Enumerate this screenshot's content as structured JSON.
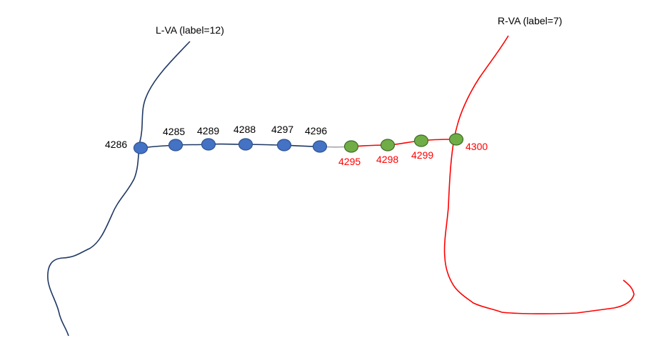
{
  "titles": {
    "left_vessel": "L-VA (label=12)",
    "right_vessel": "R-VA (label=7)"
  },
  "colors": {
    "left_line": "#1f3864",
    "right_line": "#ff0000",
    "connector": "#a6a6a6",
    "blue_node_fill": "#4472c4",
    "blue_node_stroke": "#2f528f",
    "green_node_fill": "#70ad47",
    "green_node_stroke": "#3a6b22",
    "blue_label": "#000000",
    "green_label": "#ff0000"
  },
  "nodes": [
    {
      "id": "4286",
      "group": "L-VA"
    },
    {
      "id": "4285",
      "group": "L-VA"
    },
    {
      "id": "4289",
      "group": "L-VA"
    },
    {
      "id": "4288",
      "group": "L-VA"
    },
    {
      "id": "4297",
      "group": "L-VA"
    },
    {
      "id": "4296",
      "group": "L-VA"
    },
    {
      "id": "4295",
      "group": "R-VA"
    },
    {
      "id": "4298",
      "group": "R-VA"
    },
    {
      "id": "4299",
      "group": "R-VA"
    },
    {
      "id": "4300",
      "group": "R-VA"
    }
  ]
}
